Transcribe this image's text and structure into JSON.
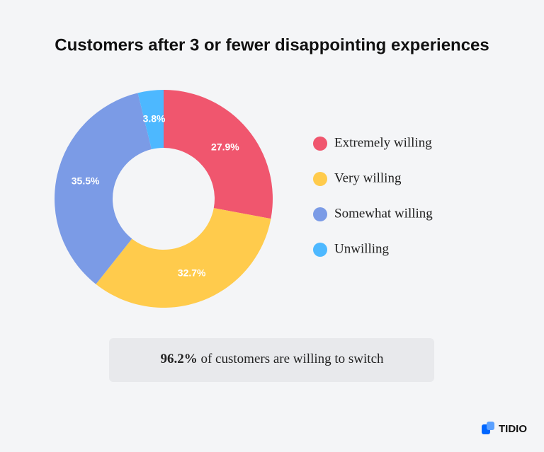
{
  "chart_data": {
    "type": "donut",
    "title": "Customers after 3 or fewer disappointing experiences",
    "categories": [
      "Extremely willing",
      "Very willing",
      "Somewhat willing",
      "Unwilling"
    ],
    "values": [
      27.9,
      32.7,
      35.5,
      3.8
    ],
    "value_labels": [
      "27.9%",
      "32.7%",
      "35.5%",
      "3.8%"
    ],
    "colors": [
      "#f0566e",
      "#ffcb4c",
      "#7b9be6",
      "#4db8ff"
    ],
    "legend": "right"
  },
  "note": {
    "highlight": "96.2%",
    "text": "of customers are willing to switch"
  },
  "brand": "TIDIO"
}
